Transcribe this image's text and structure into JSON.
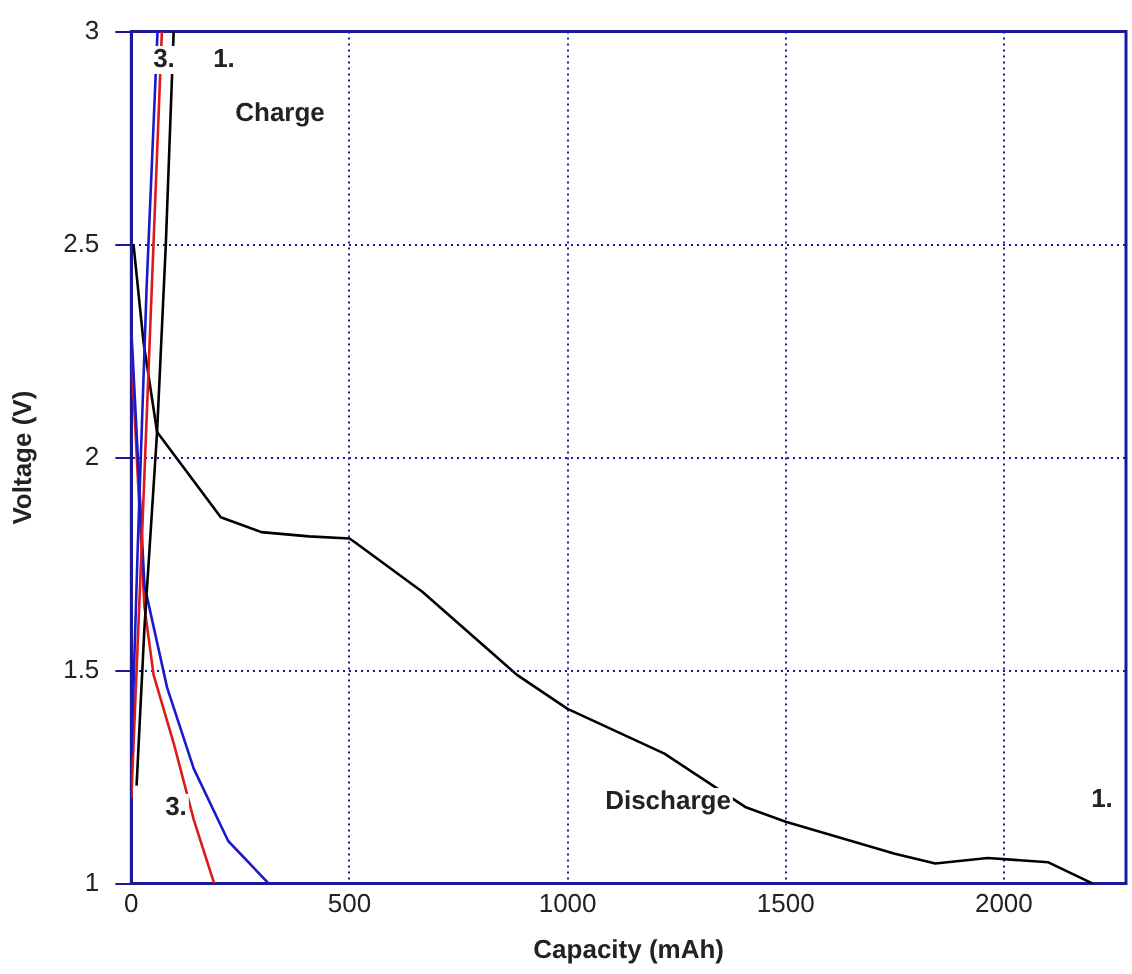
{
  "chart_data": {
    "type": "line",
    "xlabel": "Capacity (mAh)",
    "ylabel": "Voltage (V)",
    "xlim": [
      0,
      2280
    ],
    "ylim": [
      1,
      3
    ],
    "xticks": [
      0,
      500,
      1000,
      1500,
      2000
    ],
    "yticks": [
      1,
      1.5,
      2,
      2.5,
      3
    ],
    "grid": true,
    "legend": false,
    "marker": "none",
    "line_style": "solid",
    "series": [
      {
        "color": "#000000",
        "x": [
          12,
          30,
          59,
          79,
          97
        ],
        "values": [
          1.23,
          1.6,
          2.06,
          2.5,
          3.0
        ]
      },
      {
        "color": "#1a1acc",
        "x": [
          0,
          15,
          35,
          60
        ],
        "values": [
          1.3,
          1.8,
          2.4,
          3.0
        ]
      },
      {
        "color": "#dd1a1a",
        "x": [
          0,
          20,
          45,
          70
        ],
        "values": [
          1.2,
          1.7,
          2.35,
          3.0
        ]
      },
      {
        "color": "#000000",
        "x": [
          5,
          28,
          59,
          205,
          298,
          407,
          500,
          514,
          667,
          884,
          1000,
          1222,
          1407,
          1500,
          1750,
          1843,
          1870,
          1963,
          2102,
          2204
        ],
        "values": [
          2.5,
          2.27,
          2.06,
          1.86,
          1.825,
          1.815,
          1.81,
          1.8,
          1.685,
          1.49,
          1.41,
          1.305,
          1.18,
          1.145,
          1.07,
          1.047,
          1.05,
          1.06,
          1.05,
          1.0
        ]
      },
      {
        "color": "#1a1acc",
        "x": [
          0,
          30,
          82,
          143,
          222,
          315
        ],
        "values": [
          2.3,
          1.7,
          1.46,
          1.27,
          1.1,
          1.0
        ]
      },
      {
        "color": "#dd1a1a",
        "x": [
          0,
          30,
          51,
          97,
          143,
          190
        ],
        "values": [
          2.25,
          1.65,
          1.49,
          1.33,
          1.15,
          1.0
        ]
      }
    ],
    "annotations": [
      "3.",
      "1.",
      "Charge",
      "Discharge",
      "3.",
      "1."
    ]
  }
}
